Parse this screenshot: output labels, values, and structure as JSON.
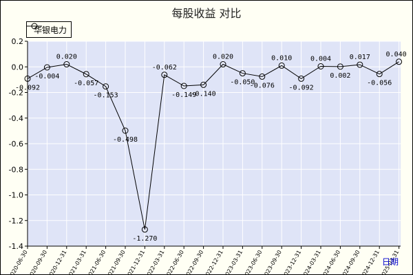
{
  "title": "每股收益  对比",
  "legend": {
    "label": "华银电力"
  },
  "x_axis_name": "日期",
  "colors": {
    "plot_bg": "#dfe4f7",
    "grid": "#ffffff",
    "line": "#000000",
    "frame_bg": "#fffff4"
  },
  "chart_data": {
    "type": "line",
    "title": "每股收益  对比",
    "xlabel": "日期",
    "ylabel": "",
    "ylim": [
      -1.4,
      0.2
    ],
    "yticks": [
      0.2,
      0.0,
      -0.2,
      -0.4,
      -0.6,
      -0.8,
      -1.0,
      -1.2,
      -1.4
    ],
    "ytick_labels": [
      "0.2",
      "0.0",
      "-0.2",
      "-0.4",
      "-0.6",
      "-0.8",
      "-1.0",
      "-1.2",
      "-1.4"
    ],
    "grid": true,
    "legend_position": "top-left",
    "categories": [
      "2020-06-30",
      "2020-09-30",
      "2020-12-31",
      "2021-03-31",
      "2021-06-30",
      "2021-09-30",
      "2021-12-31",
      "2022-03-31",
      "2022-06-30",
      "2022-09-30",
      "2022-12-31",
      "2023-03-31",
      "2023-06-30",
      "2023-09-30",
      "2023-12-31",
      "2024-03-31",
      "2024-06-30",
      "2024-09-30",
      "2024-12-31",
      "2025-03-31"
    ],
    "series": [
      {
        "name": "华银电力",
        "values": [
          -0.092,
          -0.004,
          0.02,
          -0.057,
          -0.153,
          -0.498,
          -1.27,
          -0.062,
          -0.149,
          -0.14,
          0.02,
          -0.05,
          -0.076,
          0.01,
          -0.092,
          0.004,
          0.002,
          0.017,
          -0.056,
          0.04
        ],
        "labels": [
          "-0.092",
          "-0.004",
          "0.020",
          "-0.057",
          "-0.153",
          "-0.498",
          "-1.270",
          "-0.062",
          "-0.149",
          "-0.140",
          "0.020",
          "-0.050",
          "-0.076",
          "0.010",
          "-0.092",
          "0.004",
          "0.002",
          "0.017",
          "-0.056",
          "0.040"
        ]
      }
    ]
  }
}
